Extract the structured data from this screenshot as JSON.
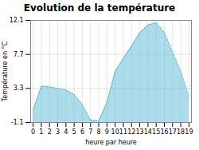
{
  "chart_data": {
    "type": "area",
    "title": "Evolution de la température",
    "xlabel": "heure par heure",
    "ylabel": "Température en °C",
    "x": [
      0,
      1,
      2,
      3,
      4,
      5,
      6,
      7,
      8,
      9,
      10,
      11,
      12,
      13,
      14,
      15,
      16,
      17,
      18,
      19
    ],
    "values": [
      0.5,
      3.6,
      3.5,
      3.3,
      3.1,
      2.5,
      1.2,
      -0.8,
      -0.9,
      1.5,
      5.5,
      7.2,
      8.8,
      10.5,
      11.5,
      11.8,
      10.5,
      8.0,
      5.5,
      2.2
    ],
    "color": "#5ab8d4",
    "line_style": "dotted",
    "xlim": [
      -0.3,
      19.3
    ],
    "xticks": [
      0,
      1,
      2,
      3,
      4,
      5,
      6,
      7,
      8,
      9,
      10,
      11,
      12,
      13,
      14,
      15,
      16,
      17,
      18,
      19
    ],
    "ylim": [
      -1.1,
      12.1
    ],
    "yticks": [
      -1.1,
      3.3,
      7.7,
      12.1
    ],
    "grid": true
  }
}
